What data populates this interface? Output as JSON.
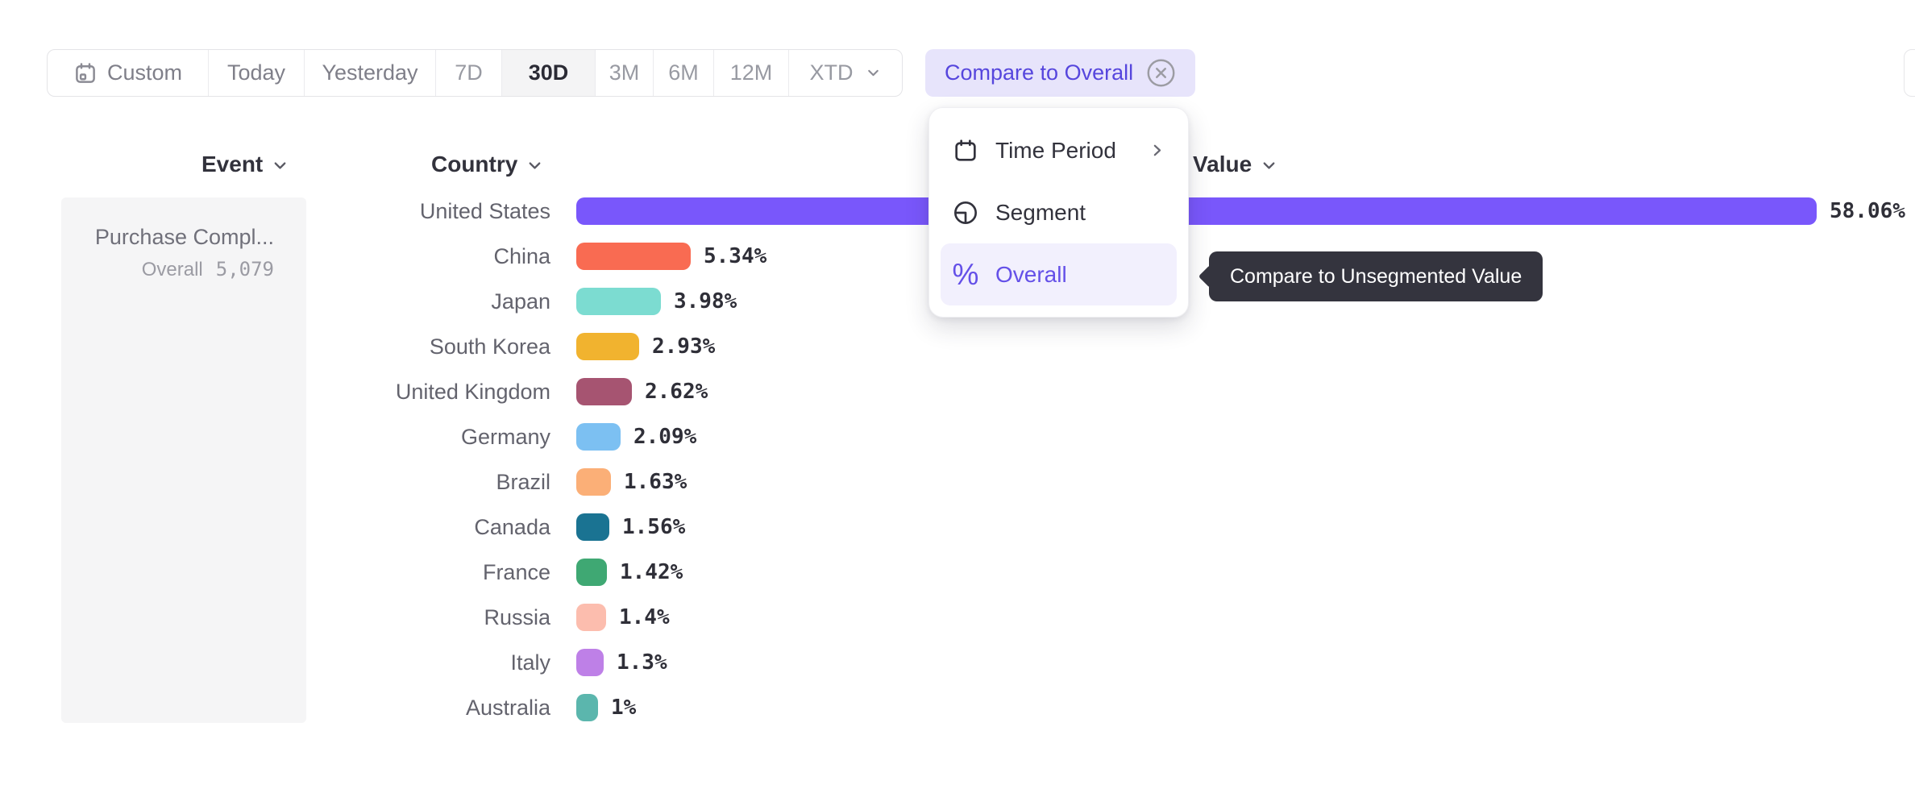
{
  "toolbar": {
    "date_ranges": [
      {
        "label": "Custom",
        "icon": "calendar-icon",
        "selected": false
      },
      {
        "label": "Today",
        "selected": false
      },
      {
        "label": "Yesterday",
        "selected": false
      },
      {
        "label": "7D",
        "selected": false
      },
      {
        "label": "30D",
        "selected": true
      },
      {
        "label": "3M",
        "selected": false
      },
      {
        "label": "6M",
        "selected": false
      },
      {
        "label": "12M",
        "selected": false
      },
      {
        "label": "XTD",
        "icon": "chevron-down-icon",
        "selected": false
      }
    ],
    "compare_button": {
      "label": "Compare to Overall",
      "icon": "circled-x-icon"
    }
  },
  "columns": {
    "event_label": "Event",
    "country_label": "Country",
    "value_label": "Value"
  },
  "event_panel": {
    "event_name": "Purchase Compl...",
    "overall_label": "Overall",
    "overall_value": "5,079"
  },
  "dropdown_menu": {
    "items": [
      {
        "label": "Time Period",
        "icon": "calendar-icon",
        "has_submenu": true,
        "selected": false
      },
      {
        "label": "Segment",
        "icon": "segment-icon",
        "has_submenu": false,
        "selected": false
      },
      {
        "label": "Overall",
        "icon": "percent-icon",
        "has_submenu": false,
        "selected": true
      }
    ]
  },
  "tooltip": {
    "text": "Compare to Unsegmented Value"
  },
  "chart_data": {
    "type": "bar",
    "orientation": "horizontal",
    "sorted": "descending",
    "categories": [
      "United States",
      "China",
      "Japan",
      "South Korea",
      "United Kingdom",
      "Germany",
      "Brazil",
      "Canada",
      "France",
      "Russia",
      "Italy",
      "Australia"
    ],
    "values": [
      58.06,
      5.34,
      3.98,
      2.93,
      2.62,
      2.09,
      1.63,
      1.56,
      1.42,
      1.4,
      1.3,
      1
    ],
    "labels": [
      "58.06%",
      "5.34%",
      "3.98%",
      "2.93%",
      "2.62%",
      "2.09%",
      "1.63%",
      "1.56%",
      "1.42%",
      "1.4%",
      "1.3%",
      "1%"
    ],
    "colors": [
      "#7957FB",
      "#F96B52",
      "#7CDCD1",
      "#F1B32F",
      "#A65471",
      "#7CC0F2",
      "#FBAF77",
      "#1A7392",
      "#3FA873",
      "#FCBDAE",
      "#BE80E7",
      "#5BB6AD"
    ],
    "xlabel": "",
    "ylabel": "Country",
    "xlim": [
      0,
      60
    ],
    "grid": false,
    "legend": false
  }
}
